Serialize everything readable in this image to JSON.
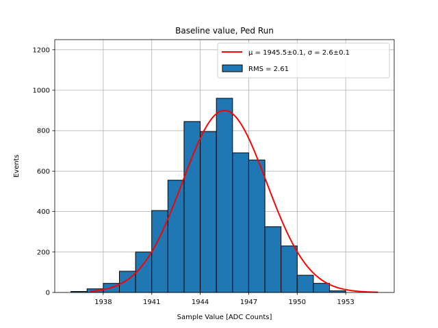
{
  "chart_data": {
    "type": "bar",
    "title": "Baseline value, Ped Run",
    "xlabel": "Sample Value [ADC Counts]",
    "ylabel": "Events",
    "xlim": [
      1935.0,
      1956.0
    ],
    "ylim": [
      0,
      1250
    ],
    "grid": true,
    "legend_position": "top-right",
    "x_ticks": [
      1938,
      1941,
      1944,
      1947,
      1950,
      1953
    ],
    "y_ticks": [
      0,
      200,
      400,
      600,
      800,
      1000,
      1200
    ],
    "histogram": {
      "name": "RMS = 2.61",
      "color": "#1f77b4",
      "edge_color": "#000000",
      "bin_edges": [
        1936,
        1937,
        1938,
        1939,
        1940,
        1941,
        1942,
        1943,
        1944,
        1945,
        1946,
        1947,
        1948,
        1949,
        1950,
        1951,
        1952,
        1953
      ],
      "counts": [
        5,
        18,
        45,
        105,
        200,
        405,
        555,
        845,
        795,
        960,
        690,
        655,
        325,
        230,
        85,
        45,
        8
      ]
    },
    "fit": {
      "name": "$\\mu = 1945.5 \\pm 0.1$, $\\sigma = 2.6 \\pm 0.1$",
      "legend_mu_label": "μ = 1945.5±0.1, ",
      "legend_sigma_label": "σ = 2.6±0.1",
      "color": "#ff0000",
      "mu": 1945.5,
      "sigma": 2.6,
      "amplitude": 900,
      "x_range": [
        1937.2,
        1955.0
      ]
    }
  }
}
